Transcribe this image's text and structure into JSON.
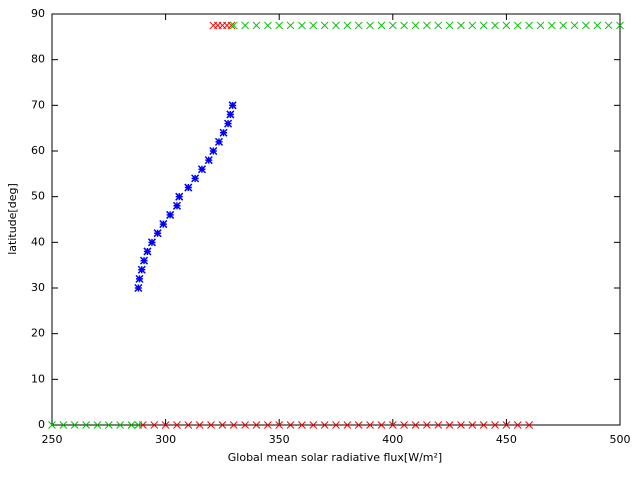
{
  "chart_data": {
    "type": "scatter",
    "xlabel": "Global mean solar radiative flux[W/m²]",
    "ylabel": "latitude[deg]",
    "xlim": [
      250,
      500
    ],
    "ylim": [
      0,
      90
    ],
    "xticks": [
      250,
      300,
      350,
      400,
      450,
      500
    ],
    "yticks": [
      0,
      10,
      20,
      30,
      40,
      50,
      60,
      70,
      80,
      90
    ],
    "series": [
      {
        "color": "#ff0000",
        "marker": "x",
        "x": [
          321,
          323,
          325,
          327,
          329,
          290,
          295,
          300,
          305,
          310,
          315,
          320,
          325,
          330,
          335,
          340,
          345,
          350,
          355,
          360,
          365,
          370,
          375,
          380,
          385,
          390,
          395,
          400,
          405,
          410,
          415,
          420,
          425,
          430,
          435,
          440,
          445,
          450,
          455,
          460
        ],
        "values": [
          87.5,
          87.5,
          87.5,
          87.5,
          87.5,
          0,
          0,
          0,
          0,
          0,
          0,
          0,
          0,
          0,
          0,
          0,
          0,
          0,
          0,
          0,
          0,
          0,
          0,
          0,
          0,
          0,
          0,
          0,
          0,
          0,
          0,
          0,
          0,
          0,
          0,
          0,
          0,
          0,
          0,
          0
        ]
      },
      {
        "color": "#00c000",
        "marker": "x",
        "x": [
          250,
          255,
          260,
          265,
          270,
          275,
          280,
          285,
          288,
          288,
          288.5,
          289.5,
          290.5,
          292,
          294,
          296.5,
          299,
          302,
          305,
          306,
          310,
          313,
          316,
          319,
          321,
          323.5,
          325.5,
          327.5,
          328.5,
          329.5,
          330,
          335,
          340,
          345,
          350,
          355,
          360,
          365,
          370,
          375,
          380,
          385,
          390,
          395,
          400,
          405,
          410,
          415,
          420,
          425,
          430,
          435,
          440,
          445,
          450,
          455,
          460,
          465,
          470,
          475,
          480,
          485,
          490,
          495,
          500
        ],
        "values": [
          0,
          0,
          0,
          0,
          0,
          0,
          0,
          0,
          0,
          30,
          32,
          34,
          36,
          38,
          40,
          42,
          44,
          46,
          48,
          50,
          52,
          54,
          56,
          58,
          60,
          62,
          64,
          66,
          68,
          70,
          87.5,
          87.5,
          87.5,
          87.5,
          87.5,
          87.5,
          87.5,
          87.5,
          87.5,
          87.5,
          87.5,
          87.5,
          87.5,
          87.5,
          87.5,
          87.5,
          87.5,
          87.5,
          87.5,
          87.5,
          87.5,
          87.5,
          87.5,
          87.5,
          87.5,
          87.5,
          87.5,
          87.5,
          87.5,
          87.5,
          87.5,
          87.5,
          87.5,
          87.5,
          87.5
        ]
      },
      {
        "color": "#0000ff",
        "marker": "star",
        "x": [
          288,
          288.5,
          289.5,
          290.5,
          292,
          294,
          296.5,
          299,
          302,
          305,
          306,
          310,
          313,
          316,
          319,
          321,
          323.5,
          325.5,
          327.5,
          328.5,
          329.5
        ],
        "values": [
          30,
          32,
          34,
          36,
          38,
          40,
          42,
          44,
          46,
          48,
          50,
          52,
          54,
          56,
          58,
          60,
          62,
          64,
          66,
          68,
          70
        ]
      }
    ]
  }
}
